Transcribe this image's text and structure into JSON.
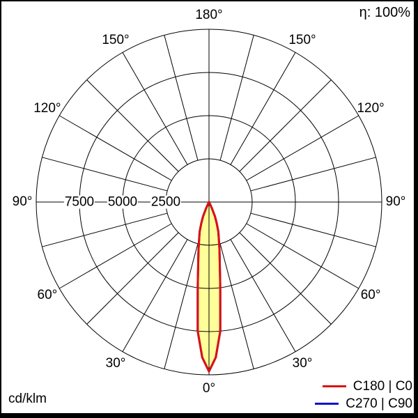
{
  "header": {
    "efficiency_label": "η: 100%"
  },
  "footer": {
    "units_label": "cd/klm"
  },
  "legend": [
    {
      "label": "C180 | C0",
      "color": "#dd1111"
    },
    {
      "label": "C270 | C90",
      "color": "#1111cc"
    }
  ],
  "colors": {
    "grid": "#000000",
    "background": "#ffffff",
    "beam_fill": "#ffff99",
    "c0_curve": "#dd1111",
    "c90_curve": "#1111cc",
    "frame": "#000000"
  },
  "chart_data": {
    "type": "polar",
    "subtype": "luminous-intensity-distribution",
    "units": "cd/klm",
    "efficiency": "100%",
    "rmax": 10000,
    "radial_ticks": [
      2500,
      5000,
      7500,
      10000
    ],
    "radial_tick_labels": [
      "2500",
      "5000",
      "7500"
    ],
    "angle_step_deg": 15,
    "angle_labels": [
      {
        "angle": 0,
        "label": "0°"
      },
      {
        "angle": 30,
        "label": "30°"
      },
      {
        "angle": 60,
        "label": "60°"
      },
      {
        "angle": 90,
        "label": "90°"
      },
      {
        "angle": 120,
        "label": "120°"
      },
      {
        "angle": 150,
        "label": "150°"
      },
      {
        "angle": 180,
        "label": "180°"
      }
    ],
    "series": [
      {
        "name": "C180 | C0",
        "color": "#dd1111",
        "gamma_deg": [
          0,
          2.5,
          5,
          7.5,
          10,
          12.5,
          15,
          17.5,
          20,
          22.5,
          25,
          27.5,
          30
        ],
        "intensity_cd_per_klm": [
          9800,
          9000,
          7500,
          5000,
          3600,
          2800,
          2200,
          1800,
          1300,
          900,
          400,
          100,
          0
        ]
      },
      {
        "name": "C270 | C90",
        "color": "#1111cc",
        "gamma_deg": [
          0,
          2.5,
          5,
          7.5,
          10,
          12.5,
          15,
          17.5,
          20,
          22.5,
          25,
          27.5,
          30
        ],
        "intensity_cd_per_klm": [
          9800,
          9000,
          7500,
          5000,
          3600,
          2800,
          2200,
          1800,
          1300,
          900,
          400,
          100,
          0
        ]
      }
    ]
  }
}
